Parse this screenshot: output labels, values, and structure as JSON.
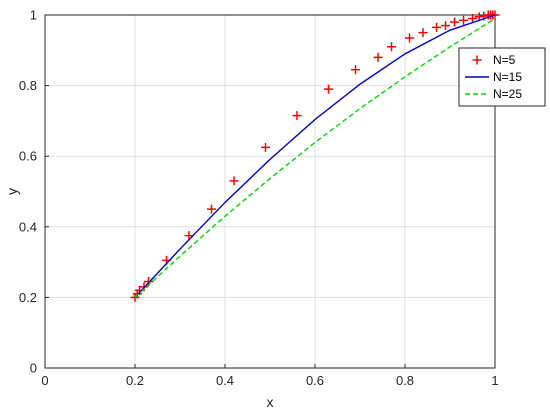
{
  "chart_data": {
    "type": "line",
    "title": "",
    "xlabel": "x",
    "ylabel": "y",
    "xlim": [
      0,
      1
    ],
    "ylim": [
      0,
      1
    ],
    "xticks": [
      "0",
      "0.2",
      "0.4",
      "0.6",
      "0.8",
      "1"
    ],
    "yticks": [
      "0",
      "0.2",
      "0.4",
      "0.6",
      "0.8",
      "1"
    ],
    "grid": true,
    "legend": "top-right",
    "series": [
      {
        "name": "N=5",
        "style": "markers",
        "marker": "+",
        "color": "#ff0000",
        "x": [
          0.2,
          0.205,
          0.21,
          0.22,
          0.23,
          0.27,
          0.32,
          0.37,
          0.42,
          0.49,
          0.56,
          0.63,
          0.69,
          0.74,
          0.77,
          0.81,
          0.84,
          0.87,
          0.89,
          0.91,
          0.93,
          0.95,
          0.965,
          0.975,
          0.985,
          0.99,
          0.995,
          1.0
        ],
        "y": [
          0.2,
          0.21,
          0.22,
          0.23,
          0.245,
          0.305,
          0.375,
          0.45,
          0.53,
          0.625,
          0.715,
          0.79,
          0.845,
          0.88,
          0.91,
          0.935,
          0.95,
          0.965,
          0.97,
          0.98,
          0.985,
          0.99,
          0.995,
          0.997,
          1.0,
          1.0,
          1.0,
          1.0
        ]
      },
      {
        "name": "N=15",
        "style": "solid",
        "color": "#0000cc",
        "x": [
          0.2,
          0.3,
          0.4,
          0.5,
          0.6,
          0.7,
          0.8,
          0.9,
          1.0
        ],
        "y": [
          0.2,
          0.337,
          0.469,
          0.591,
          0.704,
          0.804,
          0.89,
          0.957,
          1.0
        ]
      },
      {
        "name": "N=25",
        "style": "dashed",
        "color": "#00dd00",
        "x": [
          0.2,
          0.3,
          0.4,
          0.5,
          0.6,
          0.7,
          0.8,
          0.9,
          1.0
        ],
        "y": [
          0.2,
          0.317,
          0.43,
          0.537,
          0.639,
          0.735,
          0.825,
          0.91,
          0.99
        ]
      }
    ]
  }
}
